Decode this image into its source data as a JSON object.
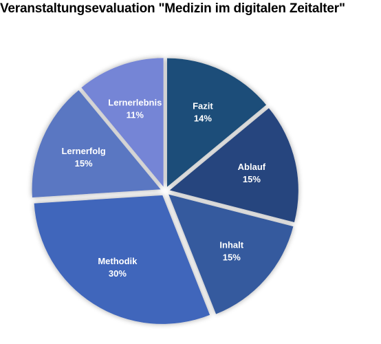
{
  "chart_data": {
    "type": "pie",
    "title": "Veranstaltungsevaluation \"Medizin im digitalen Zeitalter\"",
    "categories": [
      "Fazit",
      "Ablauf",
      "Inhalt",
      "Methodik",
      "Lernerfolg",
      "Lernerlebnis"
    ],
    "values": [
      14,
      15,
      15,
      30,
      15,
      11
    ],
    "labels": [
      "14%",
      "15%",
      "15%",
      "30%",
      "15%",
      "11%"
    ],
    "colors": [
      "#1f4e79",
      "#27457e",
      "#355a9e",
      "#4066bb",
      "#5a77c2",
      "#7585d6"
    ],
    "start_angle_deg": 0,
    "direction": "clockwise",
    "exploded": true,
    "legend": "none"
  }
}
